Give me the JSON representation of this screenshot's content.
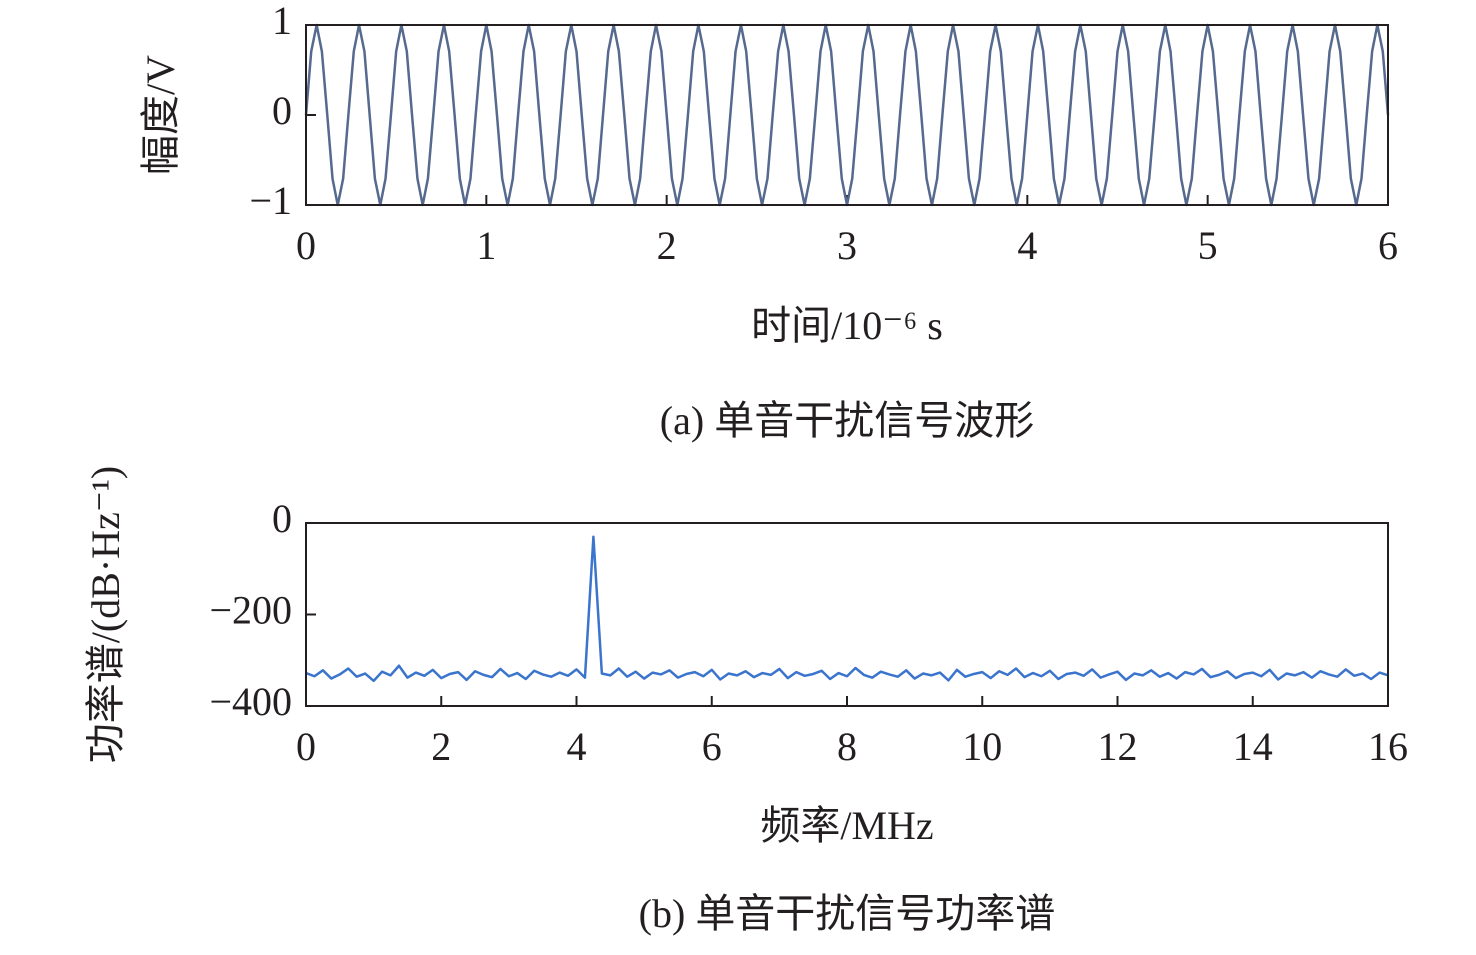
{
  "chart_data": [
    {
      "type": "line",
      "caption": "(a) 单音干扰信号波形",
      "xlabel": "时间/10⁻⁶ s",
      "ylabel": "幅度/V",
      "xlim": [
        0,
        6
      ],
      "xticks": [
        0,
        1,
        2,
        3,
        4,
        5,
        6
      ],
      "ylim": [
        -1,
        1
      ],
      "yticks": [
        {
          "value": -1,
          "label": "−1"
        },
        0,
        1
      ],
      "x": [
        0,
        0.029,
        0.059,
        0.088,
        0.118,
        0.147,
        0.176,
        0.206,
        0.235,
        0.265,
        0.294,
        0.324,
        0.353,
        0.382,
        0.412,
        0.441,
        0.471,
        0.5,
        0.529,
        0.559,
        0.588,
        0.618,
        0.647,
        0.676,
        0.706,
        0.735,
        0.765,
        0.794,
        0.824,
        0.853,
        0.882,
        0.912,
        0.941,
        0.971,
        1,
        1.029,
        1.059,
        1.088,
        1.118,
        1.147,
        1.176,
        1.206,
        1.235,
        1.265,
        1.294,
        1.324,
        1.353,
        1.382,
        1.412,
        1.441,
        1.471,
        1.5,
        1.529,
        1.559,
        1.588,
        1.618,
        1.647,
        1.676,
        1.706,
        1.735,
        1.765,
        1.794,
        1.824,
        1.853,
        1.882,
        1.912,
        1.941,
        1.971,
        2,
        2.029,
        2.059,
        2.088,
        2.118,
        2.147,
        2.176,
        2.206,
        2.235,
        2.265,
        2.294,
        2.324,
        2.353,
        2.382,
        2.412,
        2.441,
        2.471,
        2.5,
        2.529,
        2.559,
        2.588,
        2.618,
        2.647,
        2.676,
        2.706,
        2.735,
        2.765,
        2.794,
        2.824,
        2.853,
        2.882,
        2.912,
        2.941,
        2.971,
        3,
        3.029,
        3.059,
        3.088,
        3.118,
        3.147,
        3.176,
        3.206,
        3.235,
        3.265,
        3.294,
        3.324,
        3.353,
        3.382,
        3.412,
        3.441,
        3.471,
        3.5,
        3.529,
        3.559,
        3.588,
        3.618,
        3.647,
        3.676,
        3.706,
        3.735,
        3.765,
        3.794,
        3.824,
        3.853,
        3.882,
        3.912,
        3.941,
        3.971,
        4,
        4.029,
        4.059,
        4.088,
        4.118,
        4.147,
        4.176,
        4.206,
        4.235,
        4.265,
        4.294,
        4.324,
        4.353,
        4.382,
        4.412,
        4.441,
        4.471,
        4.5,
        4.529,
        4.559,
        4.588,
        4.618,
        4.647,
        4.676,
        4.706,
        4.735,
        4.765,
        4.794,
        4.824,
        4.853,
        4.882,
        4.912,
        4.941,
        4.971,
        5,
        5.029,
        5.059,
        5.088,
        5.118,
        5.147,
        5.176,
        5.206,
        5.235,
        5.265,
        5.294,
        5.324,
        5.353,
        5.382,
        5.412,
        5.441,
        5.471,
        5.5,
        5.529,
        5.559,
        5.588,
        5.618,
        5.647,
        5.676,
        5.706,
        5.735,
        5.765,
        5.794,
        5.824,
        5.853,
        5.882,
        5.912,
        5.941,
        5.971,
        6
      ],
      "series": [
        {
          "color": "#56698e",
          "values": [
            0,
            0.707,
            1,
            0.707,
            0,
            -0.707,
            -1,
            -0.707,
            0,
            0.707,
            1,
            0.707,
            0,
            -0.707,
            -1,
            -0.707,
            0,
            0.707,
            1,
            0.707,
            0,
            -0.707,
            -1,
            -0.707,
            0,
            0.707,
            1,
            0.707,
            0,
            -0.707,
            -1,
            -0.707,
            0,
            0.707,
            1,
            0.707,
            0,
            -0.707,
            -1,
            -0.707,
            0,
            0.707,
            1,
            0.707,
            0,
            -0.707,
            -1,
            -0.707,
            0,
            0.707,
            1,
            0.707,
            0,
            -0.707,
            -1,
            -0.707,
            0,
            0.707,
            1,
            0.707,
            0,
            -0.707,
            -1,
            -0.707,
            0,
            0.707,
            1,
            0.707,
            0,
            -0.707,
            -1,
            -0.707,
            0,
            0.707,
            1,
            0.707,
            0,
            -0.707,
            -1,
            -0.707,
            0,
            0.707,
            1,
            0.707,
            0,
            -0.707,
            -1,
            -0.707,
            0,
            0.707,
            1,
            0.707,
            0,
            -0.707,
            -1,
            -0.707,
            0,
            0.707,
            1,
            0.707,
            0,
            -0.707,
            -1,
            -0.707,
            0,
            0.707,
            1,
            0.707,
            0,
            -0.707,
            -1,
            -0.707,
            0,
            0.707,
            1,
            0.707,
            0,
            -0.707,
            -1,
            -0.707,
            0,
            0.707,
            1,
            0.707,
            0,
            -0.707,
            -1,
            -0.707,
            0,
            0.707,
            1,
            0.707,
            0,
            -0.707,
            -1,
            -0.707,
            0,
            0.707,
            1,
            0.707,
            0,
            -0.707,
            -1,
            -0.707,
            0,
            0.707,
            1,
            0.707,
            0,
            -0.707,
            -1,
            -0.707,
            0,
            0.707,
            1,
            0.707,
            0,
            -0.707,
            -1,
            -0.707,
            0,
            0.707,
            1,
            0.707,
            0,
            -0.707,
            -1,
            -0.707,
            0,
            0.707,
            1,
            0.707,
            0,
            -0.707,
            -1,
            -0.707,
            0,
            0.707,
            1,
            0.707,
            0,
            -0.707,
            -1,
            -0.707,
            0,
            0.707,
            1,
            0.707,
            0,
            -0.707,
            -1,
            -0.707,
            0,
            0.707,
            1,
            0.707,
            0,
            -0.707,
            -1,
            -0.707,
            0,
            0.707,
            1,
            0.707,
            0
          ]
        }
      ]
    },
    {
      "type": "line",
      "caption": "(b) 单音干扰信号功率谱",
      "xlabel": "频率/MHz",
      "ylabel": "功率谱/(dB·Hz⁻¹)",
      "xlim": [
        0,
        16
      ],
      "xticks": [
        0,
        2,
        4,
        6,
        8,
        10,
        12,
        14,
        16
      ],
      "ylim": [
        -400,
        0
      ],
      "yticks": [
        {
          "value": -400,
          "label": "−400"
        },
        {
          "value": -200,
          "label": "−200"
        },
        0
      ],
      "x": [
        0,
        0.125,
        0.25,
        0.375,
        0.5,
        0.625,
        0.75,
        0.875,
        1,
        1.125,
        1.25,
        1.375,
        1.5,
        1.625,
        1.75,
        1.875,
        2,
        2.125,
        2.25,
        2.375,
        2.5,
        2.625,
        2.75,
        2.875,
        3,
        3.125,
        3.25,
        3.375,
        3.5,
        3.625,
        3.75,
        3.875,
        4,
        4.125,
        4.25,
        4.375,
        4.5,
        4.625,
        4.75,
        4.875,
        5,
        5.125,
        5.25,
        5.375,
        5.5,
        5.625,
        5.75,
        5.875,
        6,
        6.125,
        6.25,
        6.375,
        6.5,
        6.625,
        6.75,
        6.875,
        7,
        7.125,
        7.25,
        7.375,
        7.5,
        7.625,
        7.75,
        7.875,
        8,
        8.125,
        8.25,
        8.375,
        8.5,
        8.625,
        8.75,
        8.875,
        9,
        9.125,
        9.25,
        9.375,
        9.5,
        9.625,
        9.75,
        9.875,
        10,
        10.125,
        10.25,
        10.375,
        10.5,
        10.625,
        10.75,
        10.875,
        11,
        11.125,
        11.25,
        11.375,
        11.5,
        11.625,
        11.75,
        11.875,
        12,
        12.125,
        12.25,
        12.375,
        12.5,
        12.625,
        12.75,
        12.875,
        13,
        13.125,
        13.25,
        13.375,
        13.5,
        13.625,
        13.75,
        13.875,
        14,
        14.125,
        14.25,
        14.375,
        14.5,
        14.625,
        14.75,
        14.875,
        15,
        15.125,
        15.25,
        15.375,
        15.5,
        15.625,
        15.75,
        15.875,
        16
      ],
      "series": [
        {
          "color": "#3b74cc",
          "values": [
            -328,
            -335,
            -322,
            -340,
            -331,
            -318,
            -336,
            -329,
            -345,
            -325,
            -333,
            -312,
            -338,
            -327,
            -334,
            -321,
            -339,
            -330,
            -326,
            -343,
            -324,
            -332,
            -337,
            -319,
            -335,
            -328,
            -341,
            -323,
            -331,
            -336,
            -327,
            -334,
            -320,
            -338,
            -30,
            -329,
            -333,
            -318,
            -336,
            -325,
            -340,
            -327,
            -331,
            -322,
            -338,
            -330,
            -326,
            -335,
            -321,
            -342,
            -329,
            -333,
            -324,
            -337,
            -328,
            -332,
            -319,
            -339,
            -326,
            -334,
            -330,
            -323,
            -341,
            -328,
            -335,
            -317,
            -332,
            -338,
            -325,
            -331,
            -336,
            -322,
            -340,
            -329,
            -333,
            -327,
            -344,
            -321,
            -336,
            -330,
            -326,
            -339,
            -324,
            -332,
            -318,
            -337,
            -328,
            -335,
            -323,
            -341,
            -330,
            -327,
            -334,
            -320,
            -338,
            -331,
            -325,
            -343,
            -329,
            -333,
            -322,
            -336,
            -328,
            -340,
            -326,
            -331,
            -319,
            -337,
            -332,
            -324,
            -339,
            -330,
            -327,
            -335,
            -321,
            -342,
            -329,
            -333,
            -326,
            -338,
            -324,
            -331,
            -336,
            -320,
            -334,
            -329,
            -341,
            -327,
            -333
          ]
        }
      ]
    }
  ]
}
